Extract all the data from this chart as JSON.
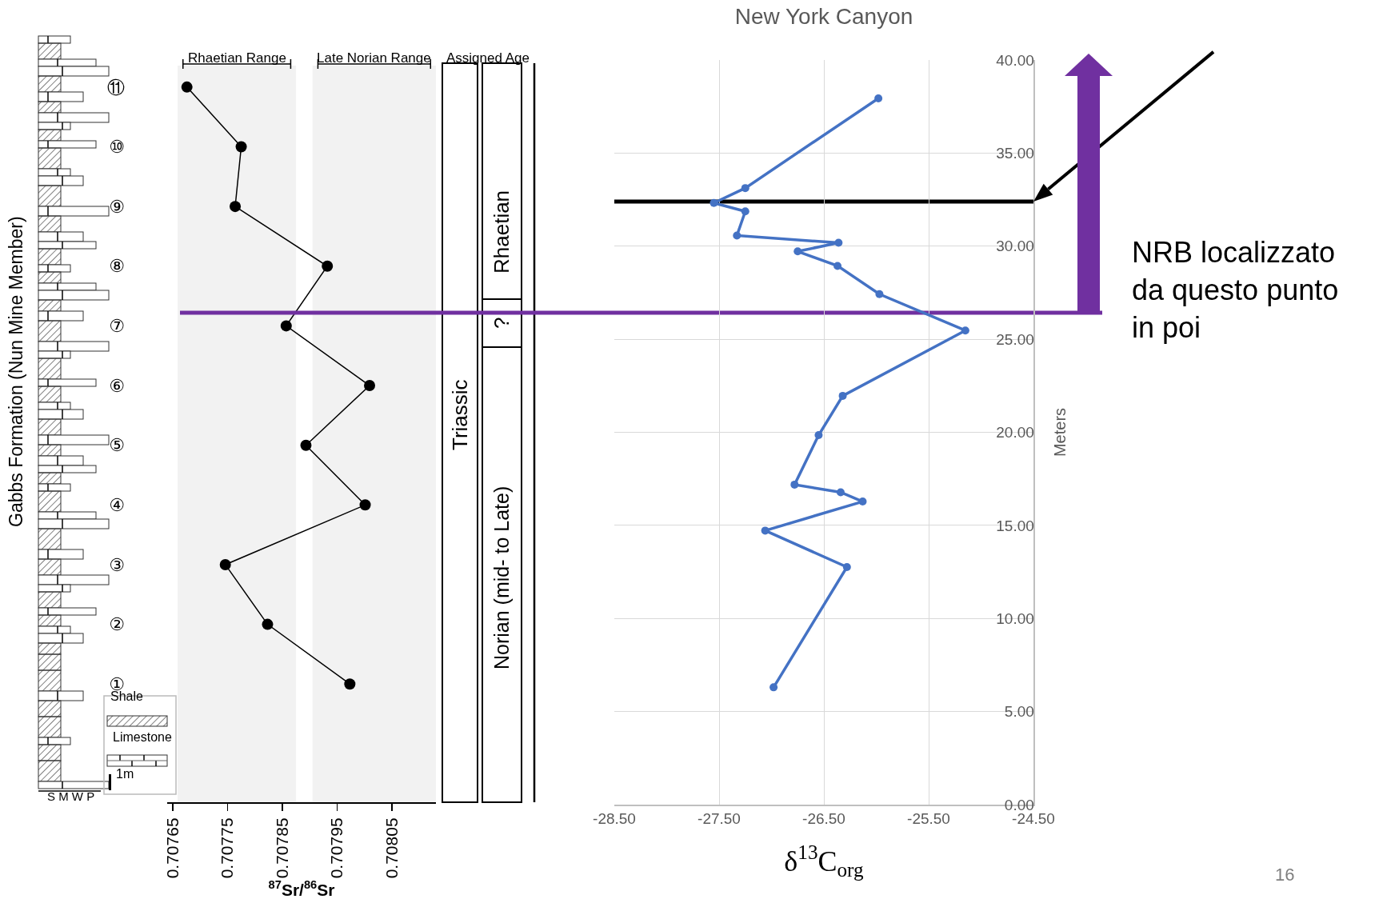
{
  "chart_data": [
    {
      "type": "line",
      "orientation": "horizontal",
      "xlabel": "$^{87}$Sr/$^{86}$Sr",
      "ylabel": "Gabbs Formation (Nun Mine Member)",
      "categories": [
        "⑪",
        "⑩",
        "⑨",
        "⑧",
        "⑦",
        "⑥",
        "⑤",
        "④",
        "③",
        "②",
        "①"
      ],
      "values": [
        0.707676,
        0.707775,
        0.707764,
        0.707932,
        0.707857,
        0.708009,
        0.707893,
        0.708001,
        0.707746,
        0.707823,
        0.707973
      ],
      "color": "#000000",
      "marker": "circle",
      "line_style": "solid",
      "xlim": [
        0.70764,
        0.70813
      ],
      "xticks": [
        0.70765,
        0.70775,
        0.70785,
        0.70795,
        0.70805
      ],
      "bands": [
        {
          "axis": "x",
          "from": 0.707659,
          "to": 0.707875,
          "label": "Rhaetian Range",
          "color": "#f2f2f2"
        },
        {
          "axis": "x",
          "from": 0.707905,
          "to": 0.70813,
          "label": "Late Norian Range",
          "color": "#f2f2f2"
        }
      ],
      "annotations": [
        "Assigned Age",
        "Triassic",
        "Rhaetian",
        "?",
        "Norian (mid- to Late)",
        "Shale",
        "Limestone",
        "1m",
        "S M W P"
      ],
      "grid": false
    },
    {
      "type": "line",
      "title": "New York Canyon",
      "xlabel": "δ$^{13}$C$_{org}$",
      "ylabel": "Meters",
      "x": [
        -26.98,
        -26.28,
        -27.06,
        -26.13,
        -26.34,
        -26.78,
        -26.55,
        -26.32,
        -25.15,
        -25.97,
        -26.37,
        -26.75,
        -26.36,
        -27.33,
        -27.25,
        -27.55,
        -27.25,
        -25.98
      ],
      "values": [
        6.3,
        12.76,
        14.72,
        16.28,
        16.78,
        17.19,
        19.85,
        21.96,
        25.47,
        27.42,
        28.94,
        29.72,
        30.18,
        30.57,
        31.87,
        32.32,
        33.12,
        37.94
      ],
      "color": "#4472c4",
      "marker": "circle",
      "line_style": "solid",
      "xlim": [
        -28.5,
        -24.5
      ],
      "xticks": [
        {
          "value": -28.5,
          "label": "-28.50"
        },
        {
          "value": -27.5,
          "label": "-27.50"
        },
        {
          "value": -26.5,
          "label": "-26.50"
        },
        {
          "value": -25.5,
          "label": "-25.50"
        },
        {
          "value": -24.5,
          "label": "-24.50"
        }
      ],
      "ylim": [
        0,
        40
      ],
      "yticks": [
        {
          "value": 0,
          "label": "0.00"
        },
        {
          "value": 5,
          "label": "5.00"
        },
        {
          "value": 10,
          "label": "10.00"
        },
        {
          "value": 15,
          "label": "15.00"
        },
        {
          "value": 20,
          "label": "20.00"
        },
        {
          "value": 25,
          "label": "25.00"
        },
        {
          "value": 30,
          "label": "30.00"
        },
        {
          "value": 35,
          "label": "35.00"
        },
        {
          "value": 40,
          "label": "40.00"
        }
      ],
      "ref_lines": [
        {
          "axis": "y",
          "value": 32.4,
          "color": "#000000"
        },
        {
          "axis": "y",
          "value": 26.42,
          "color": "#7030a0"
        }
      ],
      "annotations": [
        "NRB localizzato da questo punto in poi",
        "16"
      ],
      "grid": true
    }
  ]
}
